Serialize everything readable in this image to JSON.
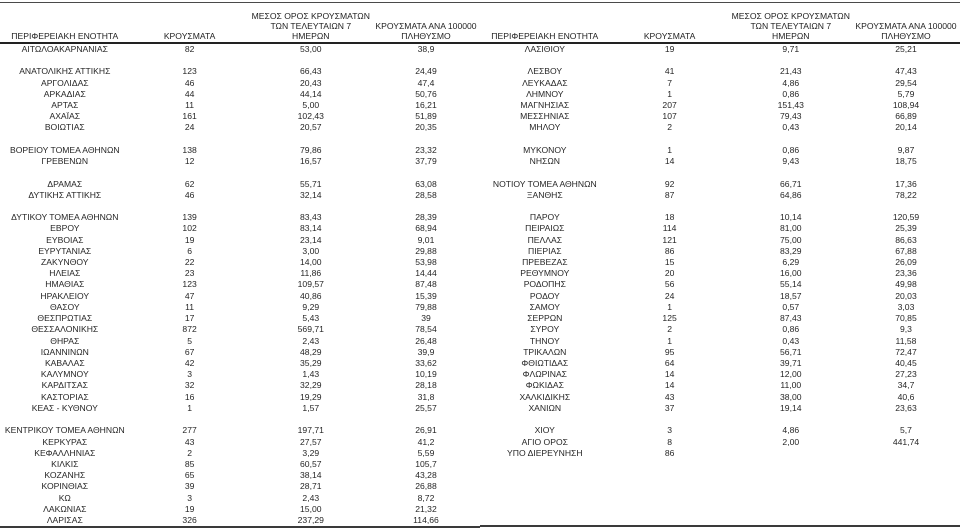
{
  "page": {
    "background": "#ffffff",
    "text_color": "#262626",
    "rule_color": "#3a3a3a"
  },
  "headers": [
    "ΠΕΡΙΦΕΡΕΙΑΚΗ ΕΝΟΤΗΤΑ",
    "ΚΡΟΥΣΜΑΤΑ",
    "ΜΕΣΟΣ ΟΡΟΣ ΚΡΟΥΣΜΑΤΩΝ ΤΩΝ ΤΕΛΕΥΤΑΙΩΝ 7 ΗΜΕΡΩΝ",
    "ΚΡΟΥΣΜΑΤΑ ΑΝΑ 100000 ΠΛΗΘΥΣΜΟ"
  ],
  "tables": [
    {
      "rows": [
        [
          "ΑΙΤΩΛΟΑΚΑΡΝΑΝΙΑΣ",
          "82",
          "53,00",
          "38,9"
        ],
        null,
        [
          "ΑΝΑΤΟΛΙΚΗΣ ΑΤΤΙΚΗΣ",
          "123",
          "66,43",
          "24,49"
        ],
        [
          "ΑΡΓΟΛΙΔΑΣ",
          "46",
          "20,43",
          "47,4"
        ],
        [
          "ΑΡΚΑΔΙΑΣ",
          "44",
          "44,14",
          "50,76"
        ],
        [
          "ΑΡΤΑΣ",
          "11",
          "5,00",
          "16,21"
        ],
        [
          "ΑΧΑΪΑΣ",
          "161",
          "102,43",
          "51,89"
        ],
        [
          "ΒΟΙΩΤΙΑΣ",
          "24",
          "20,57",
          "20,35"
        ],
        null,
        [
          "ΒΟΡΕΙΟΥ ΤΟΜΕΑ ΑΘΗΝΩΝ",
          "138",
          "79,86",
          "23,32"
        ],
        [
          "ΓΡΕΒΕΝΩΝ",
          "12",
          "16,57",
          "37,79"
        ],
        null,
        [
          "ΔΡΑΜΑΣ",
          "62",
          "55,71",
          "63,08"
        ],
        [
          "ΔΥΤΙΚΗΣ ΑΤΤΙΚΗΣ",
          "46",
          "32,14",
          "28,58"
        ],
        null,
        [
          "ΔΥΤΙΚΟΥ ΤΟΜΕΑ ΑΘΗΝΩΝ",
          "139",
          "83,43",
          "28,39"
        ],
        [
          "ΕΒΡΟΥ",
          "102",
          "83,14",
          "68,94"
        ],
        [
          "ΕΥΒΟΙΑΣ",
          "19",
          "23,14",
          "9,01"
        ],
        [
          "ΕΥΡΥΤΑΝΙΑΣ",
          "6",
          "3,00",
          "29,88"
        ],
        [
          "ΖΑΚΥΝΘΟΥ",
          "22",
          "14,00",
          "53,98"
        ],
        [
          "ΗΛΕΙΑΣ",
          "23",
          "11,86",
          "14,44"
        ],
        [
          "ΗΜΑΘΙΑΣ",
          "123",
          "109,57",
          "87,48"
        ],
        [
          "ΗΡΑΚΛΕΙΟΥ",
          "47",
          "40,86",
          "15,39"
        ],
        [
          "ΘΑΣΟΥ",
          "11",
          "9,29",
          "79,88"
        ],
        [
          "ΘΕΣΠΡΩΤΙΑΣ",
          "17",
          "5,43",
          "39"
        ],
        [
          "ΘΕΣΣΑΛΟΝΙΚΗΣ",
          "872",
          "569,71",
          "78,54"
        ],
        [
          "ΘΗΡΑΣ",
          "5",
          "2,43",
          "26,48"
        ],
        [
          "ΙΩΑΝΝΙΝΩΝ",
          "67",
          "48,29",
          "39,9"
        ],
        [
          "ΚΑΒΑΛΑΣ",
          "42",
          "35,29",
          "33,62"
        ],
        [
          "ΚΑΛΥΜΝΟΥ",
          "3",
          "1,43",
          "10,19"
        ],
        [
          "ΚΑΡΔΙΤΣΑΣ",
          "32",
          "32,29",
          "28,18"
        ],
        [
          "ΚΑΣΤΟΡΙΑΣ",
          "16",
          "19,29",
          "31,8"
        ],
        [
          "ΚΕΑΣ - ΚΥΘΝΟΥ",
          "1",
          "1,57",
          "25,57"
        ],
        null,
        [
          "ΚΕΝΤΡΙΚΟΥ ΤΟΜΕΑ ΑΘΗΝΩΝ",
          "277",
          "197,71",
          "26,91"
        ],
        [
          "ΚΕΡΚΥΡΑΣ",
          "43",
          "27,57",
          "41,2"
        ],
        [
          "ΚΕΦΑΛΛΗΝΙΑΣ",
          "2",
          "3,29",
          "5,59"
        ],
        [
          "ΚΙΛΚΙΣ",
          "85",
          "60,57",
          "105,7"
        ],
        [
          "ΚΟΖΑΝΗΣ",
          "65",
          "38,14",
          "43,28"
        ],
        [
          "ΚΟΡΙΝΘΙΑΣ",
          "39",
          "28,71",
          "26,88"
        ],
        [
          "ΚΩ",
          "3",
          "2,43",
          "8,72"
        ],
        [
          "ΛΑΚΩΝΙΑΣ",
          "19",
          "15,00",
          "21,32"
        ],
        [
          "ΛΑΡΙΣΑΣ",
          "326",
          "237,29",
          "114,66"
        ]
      ]
    },
    {
      "rows": [
        [
          "ΛΑΣΙΘΙΟΥ",
          "19",
          "9,71",
          "25,21"
        ],
        null,
        [
          "ΛΕΣΒΟΥ",
          "41",
          "21,43",
          "47,43"
        ],
        [
          "ΛΕΥΚΑΔΑΣ",
          "7",
          "4,86",
          "29,54"
        ],
        [
          "ΛΗΜΝΟΥ",
          "1",
          "0,86",
          "5,79"
        ],
        [
          "ΜΑΓΝΗΣΙΑΣ",
          "207",
          "151,43",
          "108,94"
        ],
        [
          "ΜΕΣΣΗΝΙΑΣ",
          "107",
          "79,43",
          "66,89"
        ],
        [
          "ΜΗΛΟΥ",
          "2",
          "0,43",
          "20,14"
        ],
        null,
        [
          "ΜΥΚΟΝΟΥ",
          "1",
          "0,86",
          "9,87"
        ],
        [
          "ΝΗΣΩΝ",
          "14",
          "9,43",
          "18,75"
        ],
        null,
        [
          "ΝΟΤΙΟΥ ΤΟΜΕΑ ΑΘΗΝΩΝ",
          "92",
          "66,71",
          "17,36"
        ],
        [
          "ΞΑΝΘΗΣ",
          "87",
          "64,86",
          "78,22"
        ],
        null,
        [
          "ΠΑΡΟΥ",
          "18",
          "10,14",
          "120,59"
        ],
        [
          "ΠΕΙΡΑΙΩΣ",
          "114",
          "81,00",
          "25,39"
        ],
        [
          "ΠΕΛΛΑΣ",
          "121",
          "75,00",
          "86,63"
        ],
        [
          "ΠΙΕΡΙΑΣ",
          "86",
          "83,29",
          "67,88"
        ],
        [
          "ΠΡΕΒΕΖΑΣ",
          "15",
          "6,29",
          "26,09"
        ],
        [
          "ΡΕΘΥΜΝΟΥ",
          "20",
          "16,00",
          "23,36"
        ],
        [
          "ΡΟΔΟΠΗΣ",
          "56",
          "55,14",
          "49,98"
        ],
        [
          "ΡΟΔΟΥ",
          "24",
          "18,57",
          "20,03"
        ],
        [
          "ΣΑΜΟΥ",
          "1",
          "0,57",
          "3,03"
        ],
        [
          "ΣΕΡΡΩΝ",
          "125",
          "87,43",
          "70,85"
        ],
        [
          "ΣΥΡΟΥ",
          "2",
          "0,86",
          "9,3"
        ],
        [
          "ΤΗΝΟΥ",
          "1",
          "0,43",
          "11,58"
        ],
        [
          "ΤΡΙΚΑΛΩΝ",
          "95",
          "56,71",
          "72,47"
        ],
        [
          "ΦΘΙΩΤΙΔΑΣ",
          "64",
          "39,71",
          "40,45"
        ],
        [
          "ΦΛΩΡΙΝΑΣ",
          "14",
          "12,00",
          "27,23"
        ],
        [
          "ΦΩΚΙΔΑΣ",
          "14",
          "11,00",
          "34,7"
        ],
        [
          "ΧΑΛΚΙΔΙΚΗΣ",
          "43",
          "38,00",
          "40,6"
        ],
        [
          "ΧΑΝΙΩΝ",
          "37",
          "19,14",
          "23,63"
        ],
        null,
        [
          "ΧΙΟΥ",
          "3",
          "4,86",
          "5,7"
        ],
        [
          "ΑΓΙΟ ΟΡΟΣ",
          "8",
          "2,00",
          "441,74"
        ],
        [
          "ΥΠΟ ΔΙΕΡΕΥΝΗΣΗ",
          "86",
          "",
          ""
        ],
        null,
        null,
        null,
        null,
        null,
        null
      ]
    }
  ]
}
